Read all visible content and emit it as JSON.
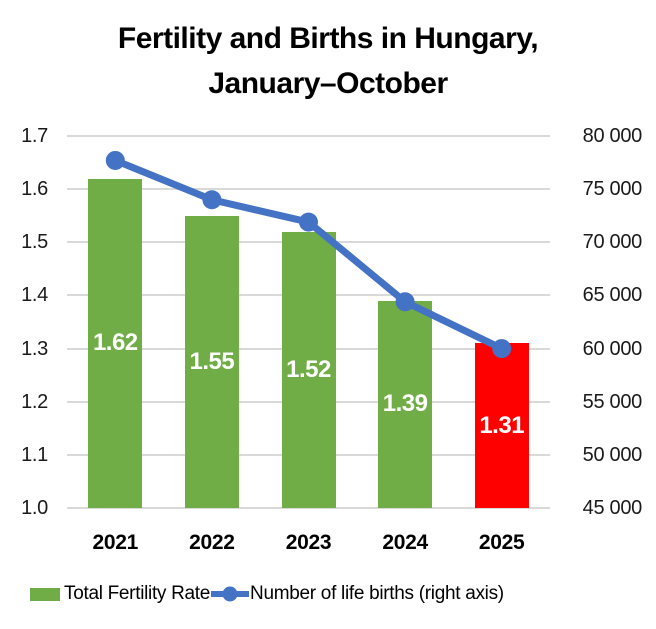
{
  "title": {
    "line1": "Fertility and Births in Hungary,",
    "line2": "January–October"
  },
  "chart_data": {
    "type": "combo-bar-line",
    "categories": [
      "2021",
      "2022",
      "2023",
      "2024",
      "2025"
    ],
    "series": [
      {
        "name": "Total Fertility Rate",
        "type": "bar",
        "axis": "left",
        "values": [
          1.62,
          1.55,
          1.52,
          1.39,
          1.31
        ],
        "colors": [
          "#70AD47",
          "#70AD47",
          "#70AD47",
          "#70AD47",
          "#FF0000"
        ]
      },
      {
        "name": "Number of life births (right axis)",
        "type": "line",
        "axis": "right",
        "values": [
          77700,
          74000,
          71900,
          64400,
          60000
        ],
        "color": "#4472C4"
      }
    ],
    "bar_labels": [
      "1.62",
      "1.55",
      "1.52",
      "1.39",
      "1.31"
    ],
    "left_axis": {
      "min": 1.0,
      "max": 1.7,
      "step": 0.1,
      "ticks": [
        "1.0",
        "1.1",
        "1.2",
        "1.3",
        "1.4",
        "1.5",
        "1.6",
        "1.7"
      ]
    },
    "right_axis": {
      "min": 45000,
      "max": 80000,
      "step": 5000,
      "ticks": [
        "45 000",
        "50 000",
        "55 000",
        "60 000",
        "65 000",
        "70 000",
        "75 000",
        "80 000"
      ]
    },
    "grid": true,
    "gridline_color": "#D9D9D9",
    "legend_position": "bottom",
    "legend": [
      {
        "label": "Total Fertility Rate",
        "swatch": "bar",
        "color": "#70AD47"
      },
      {
        "label": "Number of life births (right axis)",
        "swatch": "line-marker",
        "color": "#4472C4"
      }
    ]
  }
}
